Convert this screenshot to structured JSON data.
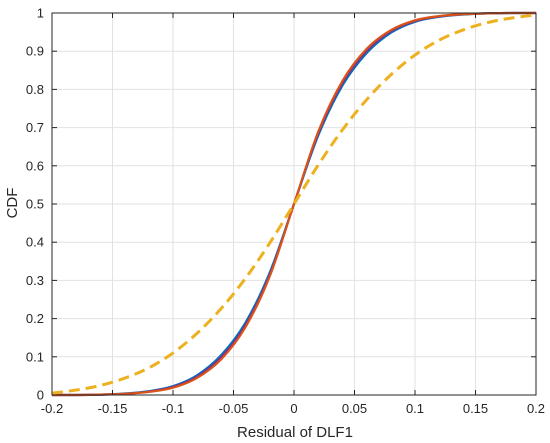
{
  "chart_data": {
    "type": "line",
    "title": "",
    "xlabel": "Residual of DLF1",
    "ylabel": "CDF",
    "xlim": [
      -0.2,
      0.2
    ],
    "ylim": [
      0,
      1
    ],
    "xticks": [
      -0.2,
      -0.15,
      -0.1,
      -0.05,
      0,
      0.05,
      0.1,
      0.15,
      0.2
    ],
    "xtick_labels": [
      "-0.2",
      "-0.15",
      "-0.1",
      "-0.05",
      "0",
      "0.05",
      "0.1",
      "0.15",
      "0.2"
    ],
    "yticks": [
      0,
      0.1,
      0.2,
      0.3,
      0.4,
      0.5,
      0.6,
      0.7,
      0.8,
      0.9,
      1
    ],
    "ytick_labels": [
      "0",
      "0.1",
      "0.2",
      "0.3",
      "0.4",
      "0.5",
      "0.6",
      "0.7",
      "0.8",
      "0.9",
      "1"
    ],
    "grid": true,
    "x": [
      -0.2,
      -0.18,
      -0.16,
      -0.14,
      -0.12,
      -0.1,
      -0.08,
      -0.06,
      -0.04,
      -0.02,
      0,
      0.02,
      0.04,
      0.06,
      0.08,
      0.1,
      0.12,
      0.14,
      0.16,
      0.18,
      0.2
    ],
    "series": [
      {
        "color": "#0072BD",
        "style": "solid",
        "values": [
          0.0,
          0.0,
          0.001,
          0.004,
          0.01,
          0.023,
          0.052,
          0.105,
          0.19,
          0.321,
          0.5,
          0.679,
          0.81,
          0.895,
          0.948,
          0.977,
          0.99,
          0.996,
          0.999,
          1.0,
          1.0
        ]
      },
      {
        "color": "#7E2F8E",
        "style": "solid",
        "values": [
          0.0,
          0.0,
          0.001,
          0.003,
          0.009,
          0.021,
          0.048,
          0.099,
          0.183,
          0.315,
          0.5,
          0.685,
          0.817,
          0.901,
          0.952,
          0.979,
          0.991,
          0.997,
          0.999,
          1.0,
          1.0
        ]
      },
      {
        "color": "#D95319",
        "style": "solid",
        "values": [
          0.0,
          0.0,
          0.001,
          0.003,
          0.008,
          0.019,
          0.045,
          0.094,
          0.178,
          0.311,
          0.5,
          0.689,
          0.822,
          0.906,
          0.955,
          0.981,
          0.992,
          0.997,
          0.999,
          1.0,
          1.0
        ]
      },
      {
        "color": "#EDB120",
        "style": "dashed",
        "values": [
          0.005,
          0.013,
          0.025,
          0.044,
          0.071,
          0.11,
          0.162,
          0.227,
          0.306,
          0.398,
          0.5,
          0.602,
          0.694,
          0.773,
          0.838,
          0.89,
          0.929,
          0.956,
          0.975,
          0.987,
          0.995
        ]
      }
    ]
  }
}
